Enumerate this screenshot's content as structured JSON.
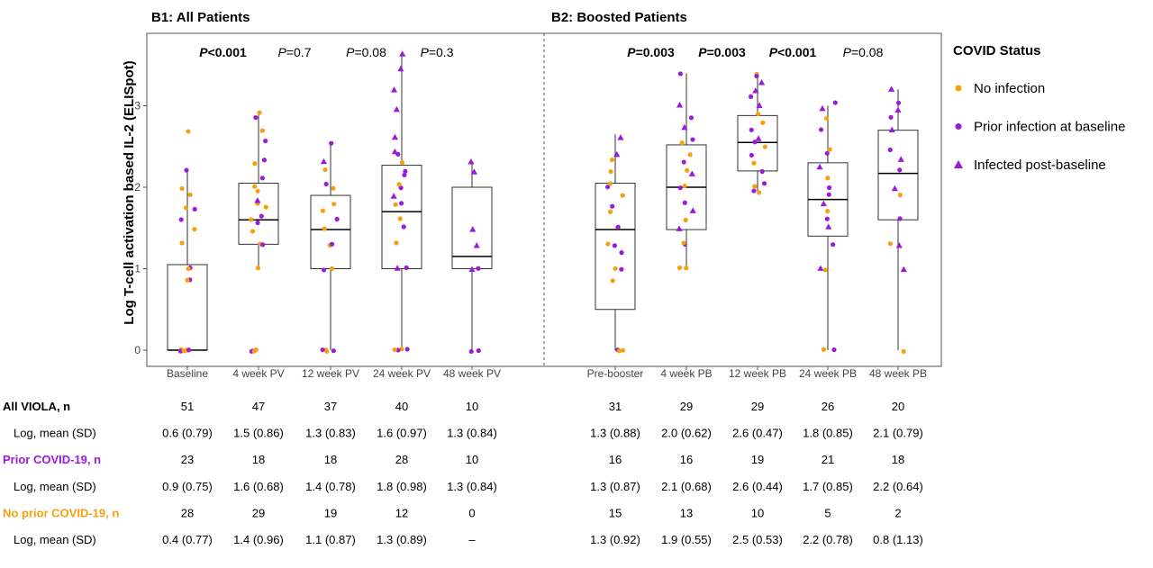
{
  "colors": {
    "no_infection": "#f5a10f",
    "prior_infection": "#9b1bdb",
    "post_baseline": "#9b1bdb",
    "box_stroke": "#333333",
    "frame": "#555555"
  },
  "legend": {
    "title": "COVID Status",
    "items": [
      {
        "label": "No infection",
        "shape": "circle",
        "color": "#f5a10f"
      },
      {
        "label": "Prior infection at baseline",
        "shape": "circle",
        "color": "#9b1bdb"
      },
      {
        "label": "Infected post-baseline",
        "shape": "triangle",
        "color": "#9b1bdb"
      }
    ]
  },
  "y_axis": {
    "label": "Log T-cell activation based IL-2 (ELISpot)",
    "ticks": [
      "0",
      "1",
      "2",
      "3"
    ],
    "ylim": [
      -0.1,
      3.95
    ]
  },
  "chart_data": [
    {
      "type": "box",
      "title": "B1: All Patients",
      "categories": [
        "Baseline",
        "4 week PV",
        "12 week PV",
        "24 week PV",
        "48 week PV"
      ],
      "boxes": [
        {
          "whisker_low": 0,
          "q1": 0,
          "median": 0,
          "q3": 1.05,
          "whisker_high": 2.2
        },
        {
          "whisker_low": 1.0,
          "q1": 1.3,
          "median": 1.6,
          "q3": 2.05,
          "whisker_high": 2.9
        },
        {
          "whisker_low": 0,
          "q1": 1.0,
          "median": 1.48,
          "q3": 1.9,
          "whisker_high": 2.55
        },
        {
          "whisker_low": 0,
          "q1": 1.0,
          "median": 1.7,
          "q3": 2.27,
          "whisker_high": 3.65
        },
        {
          "whisker_low": 0,
          "q1": 1.0,
          "median": 1.15,
          "q3": 2.0,
          "whisker_high": 2.3
        }
      ],
      "pvalues": [
        {
          "prefix": "P",
          "text": "<0.001",
          "bold": true
        },
        {
          "prefix": "P",
          "text": "=0.7",
          "bold": false
        },
        {
          "prefix": "P",
          "text": "=0.08",
          "bold": false
        },
        {
          "prefix": "P",
          "text": "=0.3",
          "bold": false
        }
      ],
      "points": [
        [
          [
            0,
            "n"
          ],
          [
            0,
            "n"
          ],
          [
            0,
            "n"
          ],
          [
            0,
            "p"
          ],
          [
            0,
            "p"
          ],
          [
            0,
            "n"
          ],
          [
            0.85,
            "p"
          ],
          [
            0.85,
            "n"
          ],
          [
            1.0,
            "p"
          ],
          [
            1.0,
            "n"
          ],
          [
            1.3,
            "n"
          ],
          [
            1.5,
            "n"
          ],
          [
            1.6,
            "p"
          ],
          [
            1.72,
            "p"
          ],
          [
            1.75,
            "n"
          ],
          [
            1.9,
            "n"
          ],
          [
            2.0,
            "n"
          ],
          [
            2.2,
            "p"
          ],
          [
            2.68,
            "n"
          ]
        ],
        [
          [
            0,
            "p"
          ],
          [
            0,
            "n"
          ],
          [
            0,
            "p"
          ],
          [
            0,
            "n"
          ],
          [
            1.0,
            "n"
          ],
          [
            1.3,
            "n"
          ],
          [
            1.3,
            "p"
          ],
          [
            1.45,
            "n"
          ],
          [
            1.55,
            "p"
          ],
          [
            1.6,
            "n"
          ],
          [
            1.65,
            "p"
          ],
          [
            1.75,
            "n"
          ],
          [
            1.8,
            "n"
          ],
          [
            1.85,
            "t"
          ],
          [
            1.95,
            "n"
          ],
          [
            2.0,
            "n"
          ],
          [
            2.1,
            "p"
          ],
          [
            2.3,
            "n"
          ],
          [
            2.35,
            "p"
          ],
          [
            2.58,
            "p"
          ],
          [
            2.7,
            "n"
          ],
          [
            2.9,
            "n"
          ],
          [
            2.85,
            "p"
          ]
        ],
        [
          [
            0,
            "n"
          ],
          [
            0,
            "p"
          ],
          [
            0,
            "n"
          ],
          [
            0,
            "p"
          ],
          [
            1.0,
            "n"
          ],
          [
            1.0,
            "p"
          ],
          [
            1.3,
            "n"
          ],
          [
            1.3,
            "p"
          ],
          [
            1.5,
            "n"
          ],
          [
            1.6,
            "p"
          ],
          [
            1.7,
            "n"
          ],
          [
            1.8,
            "n"
          ],
          [
            2.0,
            "n"
          ],
          [
            2.05,
            "p"
          ],
          [
            2.2,
            "n"
          ],
          [
            2.3,
            "t"
          ],
          [
            2.55,
            "p"
          ]
        ],
        [
          [
            0,
            "p"
          ],
          [
            0,
            "n"
          ],
          [
            0,
            "p"
          ],
          [
            0,
            "n"
          ],
          [
            1.0,
            "t"
          ],
          [
            1.0,
            "p"
          ],
          [
            1.3,
            "n"
          ],
          [
            1.5,
            "p"
          ],
          [
            1.6,
            "n"
          ],
          [
            1.8,
            "p"
          ],
          [
            1.9,
            "t"
          ],
          [
            2.0,
            "p"
          ],
          [
            2.05,
            "n"
          ],
          [
            2.2,
            "p"
          ],
          [
            2.4,
            "p"
          ],
          [
            2.45,
            "t"
          ],
          [
            2.6,
            "t"
          ],
          [
            2.95,
            "t"
          ],
          [
            3.2,
            "t"
          ],
          [
            3.45,
            "t"
          ],
          [
            3.65,
            "t"
          ],
          [
            2.3,
            "n"
          ],
          [
            1.8,
            "n"
          ],
          [
            2.15,
            "p"
          ]
        ],
        [
          [
            0,
            "p"
          ],
          [
            0,
            "p"
          ],
          [
            1.0,
            "p"
          ],
          [
            1.0,
            "t"
          ],
          [
            1.3,
            "t"
          ],
          [
            1.5,
            "t"
          ],
          [
            2.2,
            "t"
          ],
          [
            2.3,
            "t"
          ]
        ]
      ]
    },
    {
      "type": "box",
      "title": "B2: Boosted Patients",
      "categories": [
        "Pre-booster",
        "4 week PB",
        "12 week PB",
        "24 week PB",
        "48 week PB"
      ],
      "boxes": [
        {
          "whisker_low": 0,
          "q1": 0.5,
          "median": 1.48,
          "q3": 2.05,
          "whisker_high": 2.65
        },
        {
          "whisker_low": 1.0,
          "q1": 1.48,
          "median": 2.0,
          "q3": 2.52,
          "whisker_high": 3.4
        },
        {
          "whisker_low": 1.95,
          "q1": 2.2,
          "median": 2.55,
          "q3": 2.88,
          "whisker_high": 3.4
        },
        {
          "whisker_low": 0,
          "q1": 1.4,
          "median": 1.85,
          "q3": 2.3,
          "whisker_high": 3.0
        },
        {
          "whisker_low": 0,
          "q1": 1.6,
          "median": 2.17,
          "q3": 2.7,
          "whisker_high": 3.2
        }
      ],
      "pvalues": [
        {
          "prefix": "P",
          "text": "=0.003",
          "bold": true
        },
        {
          "prefix": "P",
          "text": "=0.003",
          "bold": true
        },
        {
          "prefix": "P",
          "text": "<0.001",
          "bold": true
        },
        {
          "prefix": "P",
          "text": "=0.08",
          "bold": false
        }
      ],
      "points": [
        [
          [
            0,
            "n"
          ],
          [
            0,
            "p"
          ],
          [
            0,
            "n"
          ],
          [
            1.0,
            "n"
          ],
          [
            1.0,
            "p"
          ],
          [
            1.3,
            "n"
          ],
          [
            1.3,
            "p"
          ],
          [
            1.5,
            "n"
          ],
          [
            1.5,
            "p"
          ],
          [
            1.7,
            "n"
          ],
          [
            1.75,
            "p"
          ],
          [
            1.9,
            "n"
          ],
          [
            2.0,
            "p"
          ],
          [
            2.05,
            "n"
          ],
          [
            2.2,
            "n"
          ],
          [
            2.35,
            "n"
          ],
          [
            2.4,
            "t"
          ],
          [
            2.6,
            "t"
          ],
          [
            0.85,
            "n"
          ],
          [
            1.2,
            "p"
          ]
        ],
        [
          [
            1.0,
            "n"
          ],
          [
            1.0,
            "n"
          ],
          [
            1.3,
            "p"
          ],
          [
            1.3,
            "n"
          ],
          [
            1.5,
            "t"
          ],
          [
            1.6,
            "n"
          ],
          [
            1.7,
            "t"
          ],
          [
            1.8,
            "p"
          ],
          [
            2.0,
            "n"
          ],
          [
            2.0,
            "p"
          ],
          [
            2.15,
            "t"
          ],
          [
            2.2,
            "n"
          ],
          [
            2.3,
            "p"
          ],
          [
            2.4,
            "n"
          ],
          [
            2.55,
            "n"
          ],
          [
            2.6,
            "p"
          ],
          [
            2.75,
            "t"
          ],
          [
            2.85,
            "p"
          ],
          [
            3.0,
            "t"
          ],
          [
            3.4,
            "p"
          ]
        ],
        [
          [
            1.95,
            "n"
          ],
          [
            1.95,
            "p"
          ],
          [
            2.0,
            "n"
          ],
          [
            2.05,
            "p"
          ],
          [
            2.2,
            "p"
          ],
          [
            2.3,
            "n"
          ],
          [
            2.4,
            "p"
          ],
          [
            2.5,
            "n"
          ],
          [
            2.55,
            "p"
          ],
          [
            2.6,
            "t"
          ],
          [
            2.7,
            "p"
          ],
          [
            2.8,
            "n"
          ],
          [
            2.9,
            "n"
          ],
          [
            3.0,
            "t"
          ],
          [
            3.1,
            "p"
          ],
          [
            3.2,
            "t"
          ],
          [
            3.3,
            "t"
          ],
          [
            3.4,
            "n"
          ],
          [
            3.35,
            "p"
          ]
        ],
        [
          [
            0,
            "p"
          ],
          [
            0,
            "n"
          ],
          [
            1.0,
            "t"
          ],
          [
            1.0,
            "n"
          ],
          [
            1.3,
            "p"
          ],
          [
            1.5,
            "t"
          ],
          [
            1.6,
            "p"
          ],
          [
            1.7,
            "n"
          ],
          [
            1.8,
            "t"
          ],
          [
            1.9,
            "p"
          ],
          [
            2.0,
            "p"
          ],
          [
            2.1,
            "n"
          ],
          [
            2.25,
            "t"
          ],
          [
            2.4,
            "p"
          ],
          [
            2.45,
            "n"
          ],
          [
            2.7,
            "p"
          ],
          [
            2.85,
            "n"
          ],
          [
            3.05,
            "p"
          ],
          [
            2.95,
            "t"
          ]
        ],
        [
          [
            0,
            "n"
          ],
          [
            1.0,
            "t"
          ],
          [
            1.3,
            "t"
          ],
          [
            1.3,
            "n"
          ],
          [
            1.6,
            "p"
          ],
          [
            1.9,
            "n"
          ],
          [
            2.0,
            "t"
          ],
          [
            2.2,
            "p"
          ],
          [
            2.35,
            "t"
          ],
          [
            2.45,
            "p"
          ],
          [
            2.7,
            "t"
          ],
          [
            2.85,
            "p"
          ],
          [
            2.95,
            "t"
          ],
          [
            3.05,
            "p"
          ],
          [
            3.2,
            "t"
          ]
        ]
      ]
    }
  ],
  "table": {
    "rows": [
      {
        "label": "All VIOLA, n",
        "style": "header",
        "color": "#000000",
        "values": [
          "51",
          "47",
          "37",
          "40",
          "10",
          "31",
          "29",
          "29",
          "26",
          "20"
        ]
      },
      {
        "label": "Log, mean (SD)",
        "style": "indent",
        "color": "#000000",
        "values": [
          "0.6 (0.79)",
          "1.5 (0.86)",
          "1.3 (0.83)",
          "1.6 (0.97)",
          "1.3 (0.84)",
          "1.3 (0.88)",
          "2.0 (0.62)",
          "2.6 (0.47)",
          "1.8 (0.85)",
          "2.1 (0.79)"
        ]
      },
      {
        "label": "Prior COVID-19, n",
        "style": "header",
        "color": "#9b1bdb",
        "values": [
          "23",
          "18",
          "18",
          "28",
          "10",
          "16",
          "16",
          "19",
          "21",
          "18"
        ]
      },
      {
        "label": "Log, mean (SD)",
        "style": "indent",
        "color": "#000000",
        "values": [
          "0.9 (0.75)",
          "1.6 (0.68)",
          "1.4 (0.78)",
          "1.8 (0.98)",
          "1.3 (0.84)",
          "1.3 (0.87)",
          "2.1 (0.68)",
          "2.6 (0.44)",
          "1.7 (0.85)",
          "2.2 (0.64)"
        ]
      },
      {
        "label": "No prior COVID-19, n",
        "style": "header",
        "color": "#f5a10f",
        "values": [
          "28",
          "29",
          "19",
          "12",
          "0",
          "15",
          "13",
          "10",
          "5",
          "2"
        ]
      },
      {
        "label": "Log, mean (SD)",
        "style": "indent",
        "color": "#000000",
        "values": [
          "0.4 (0.77)",
          "1.4 (0.96)",
          "1.1 (0.87)",
          "1.3 (0.89)",
          "–",
          "1.3 (0.92)",
          "1.9 (0.55)",
          "2.5 (0.53)",
          "2.2 (0.78)",
          "0.8 (1.13)"
        ]
      }
    ]
  }
}
